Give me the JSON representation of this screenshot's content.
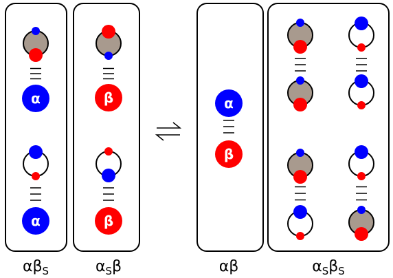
{
  "nodes": [
    {
      "label": "α"
    },
    {
      "label": "α"
    },
    {
      "label": "β"
    },
    {
      "label": "β"
    },
    {
      "label": "α"
    },
    {
      "label": "β"
    }
  ],
  "labels": [
    {
      "parts": [
        {
          "text": "αβ"
        },
        {
          "text": "S",
          "subscript": true
        }
      ]
    },
    {
      "parts": [
        {
          "text": "α"
        },
        {
          "text": "S",
          "subscript": true
        },
        {
          "text": "β"
        }
      ]
    },
    {
      "parts": [
        {
          "text": "αβ"
        }
      ]
    },
    {
      "parts": [
        {
          "text": "α"
        },
        {
          "text": "S",
          "subscript": true
        },
        {
          "text": "β"
        },
        {
          "text": "S",
          "subscript": true
        }
      ]
    }
  ]
}
